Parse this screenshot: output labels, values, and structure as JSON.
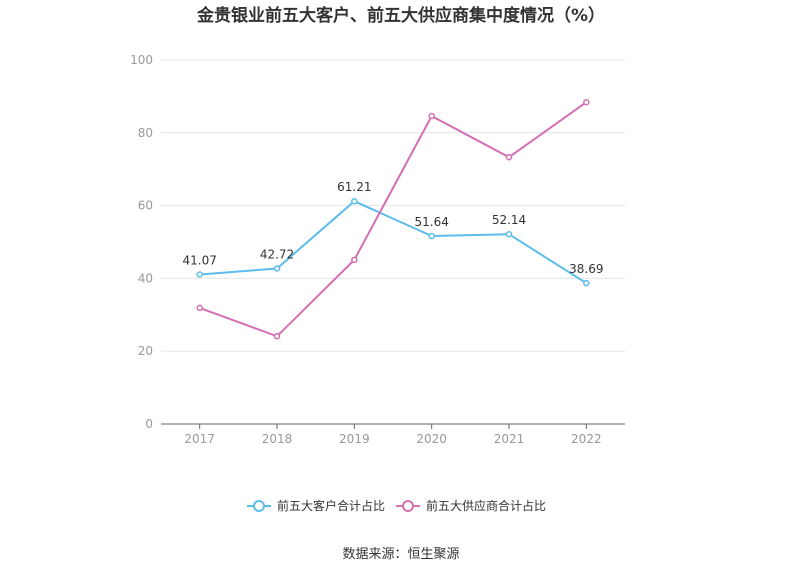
{
  "chart_data": {
    "type": "line",
    "title": "金贵银业前五大客户、前五大供应商集中度情况（%）",
    "categories": [
      "2017",
      "2018",
      "2019",
      "2020",
      "2021",
      "2022"
    ],
    "ylim": [
      0,
      100
    ],
    "yticks": [
      0,
      20,
      40,
      60,
      80,
      100
    ],
    "grid": true,
    "legend_position": "bottom",
    "series": [
      {
        "name": "前五大客户合计占比",
        "color": "#5BBDEB",
        "values": [
          41.07,
          42.72,
          61.21,
          51.64,
          52.14,
          38.69
        ],
        "labels": [
          "41.07",
          "42.72",
          "61.21",
          "51.64",
          "52.14",
          "38.69"
        ],
        "show_labels": true
      },
      {
        "name": "前五大供应商合计占比",
        "color": "#D46FB3",
        "values": [
          31.9,
          24.1,
          45.1,
          84.6,
          73.3,
          88.4
        ],
        "show_labels": false
      }
    ]
  },
  "source": "数据来源：恒生聚源"
}
